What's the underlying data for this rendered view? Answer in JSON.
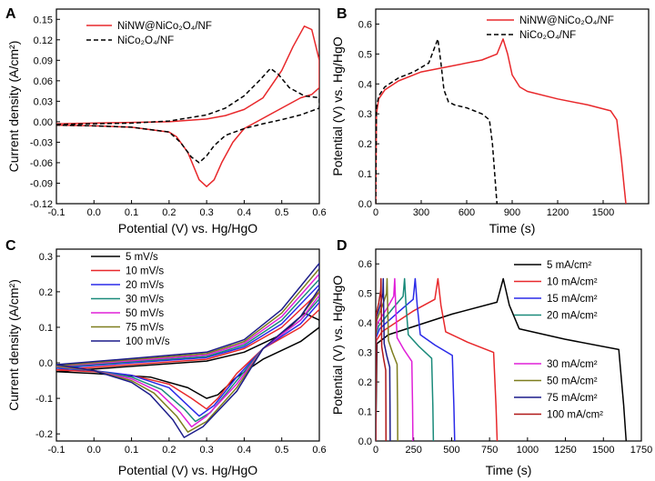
{
  "figure": {
    "background": "#ffffff",
    "axis_color": "#000000"
  },
  "chart_data": [
    {
      "panel": "A",
      "type": "line",
      "xlabel": "Potential (V) vs. Hg/HgO",
      "ylabel": "Current density (A/cm²)",
      "xlim": [
        -0.1,
        0.6
      ],
      "ylim": [
        -0.12,
        0.165
      ],
      "xticks": [
        "-0.1",
        "0.0",
        "0.1",
        "0.2",
        "0.3",
        "0.4",
        "0.5",
        "0.6"
      ],
      "yticks": [
        "-0.12",
        "-0.09",
        "-0.06",
        "-0.03",
        "0.00",
        "0.03",
        "0.06",
        "0.09",
        "0.12",
        "0.15"
      ],
      "legend_position": "top-left",
      "series": [
        {
          "name": "NiNW@NiCo₂O₄/NF",
          "color": "#e8282b",
          "dash": "solid",
          "x": [
            -0.1,
            0.0,
            0.1,
            0.2,
            0.3,
            0.35,
            0.4,
            0.45,
            0.5,
            0.53,
            0.56,
            0.58,
            0.6,
            0.6,
            0.58,
            0.55,
            0.5,
            0.45,
            0.4,
            0.37,
            0.34,
            0.32,
            0.3,
            0.28,
            0.25,
            0.22,
            0.2,
            0.1,
            0.0,
            -0.1
          ],
          "y": [
            -0.003,
            -0.002,
            -0.001,
            0.0,
            0.004,
            0.009,
            0.018,
            0.035,
            0.075,
            0.11,
            0.14,
            0.135,
            0.09,
            0.05,
            0.04,
            0.035,
            0.02,
            0.005,
            -0.01,
            -0.03,
            -0.06,
            -0.085,
            -0.095,
            -0.085,
            -0.045,
            -0.022,
            -0.015,
            -0.008,
            -0.006,
            -0.005
          ]
        },
        {
          "name": "NiCo₂O₄/NF",
          "color": "#000000",
          "dash": "dashed",
          "x": [
            -0.1,
            0.0,
            0.1,
            0.2,
            0.3,
            0.35,
            0.4,
            0.44,
            0.47,
            0.49,
            0.52,
            0.56,
            0.6,
            0.6,
            0.55,
            0.5,
            0.45,
            0.4,
            0.35,
            0.32,
            0.3,
            0.28,
            0.26,
            0.23,
            0.2,
            0.1,
            0.0,
            -0.1
          ],
          "y": [
            -0.004,
            -0.003,
            -0.002,
            0.001,
            0.01,
            0.02,
            0.038,
            0.06,
            0.078,
            0.07,
            0.05,
            0.038,
            0.035,
            0.02,
            0.01,
            0.003,
            -0.003,
            -0.01,
            -0.02,
            -0.035,
            -0.05,
            -0.06,
            -0.052,
            -0.03,
            -0.015,
            -0.008,
            -0.006,
            -0.005
          ]
        }
      ]
    },
    {
      "panel": "B",
      "type": "line",
      "xlabel": "Time (s)",
      "ylabel": "Potential (V) vs. Hg/HgO",
      "xlim": [
        0,
        1800
      ],
      "ylim": [
        0,
        0.65
      ],
      "xticks": [
        "0",
        "300",
        "600",
        "900",
        "1200",
        "1500"
      ],
      "yticks": [
        "0.0",
        "0.1",
        "0.2",
        "0.3",
        "0.4",
        "0.5",
        "0.6"
      ],
      "legend_position": "top-right",
      "series": [
        {
          "name": "NiNW@NiCo₂O₄/NF",
          "color": "#e8282b",
          "dash": "solid",
          "x": [
            0,
            5,
            20,
            60,
            150,
            300,
            500,
            700,
            800,
            840,
            870,
            900,
            950,
            1000,
            1200,
            1400,
            1550,
            1590,
            1620,
            1640,
            1650
          ],
          "y": [
            0.0,
            0.3,
            0.35,
            0.38,
            0.41,
            0.44,
            0.46,
            0.48,
            0.5,
            0.55,
            0.5,
            0.43,
            0.39,
            0.375,
            0.35,
            0.33,
            0.31,
            0.28,
            0.15,
            0.05,
            0.0
          ]
        },
        {
          "name": "NiCo₂O₄/NF",
          "color": "#000000",
          "dash": "dashed",
          "x": [
            0,
            5,
            20,
            60,
            150,
            250,
            350,
            410,
            430,
            450,
            480,
            520,
            600,
            700,
            750,
            770,
            785,
            795,
            800
          ],
          "y": [
            0.0,
            0.32,
            0.36,
            0.39,
            0.42,
            0.44,
            0.47,
            0.55,
            0.47,
            0.38,
            0.34,
            0.33,
            0.32,
            0.3,
            0.28,
            0.2,
            0.1,
            0.03,
            0.0
          ]
        }
      ]
    },
    {
      "panel": "C",
      "type": "line",
      "xlabel": "Potential (V) vs. Hg/HgO",
      "ylabel": "Current density (A/cm²)",
      "xlim": [
        -0.1,
        0.6
      ],
      "ylim": [
        -0.22,
        0.32
      ],
      "xticks": [
        "-0.1",
        "0.0",
        "0.1",
        "0.2",
        "0.3",
        "0.4",
        "0.5",
        "0.6"
      ],
      "yticks": [
        "-0.2",
        "-0.1",
        "0.0",
        "0.1",
        "0.2",
        "0.3"
      ],
      "legend_position": "top-left",
      "series": [
        {
          "name": "5 mV/s",
          "color": "#000000",
          "dash": "solid",
          "x": [
            -0.1,
            0.1,
            0.3,
            0.4,
            0.5,
            0.56,
            0.6,
            0.6,
            0.55,
            0.45,
            0.38,
            0.33,
            0.3,
            0.25,
            0.15,
            0.0,
            -0.1
          ],
          "y": [
            -0.025,
            -0.01,
            0.005,
            0.03,
            0.08,
            0.14,
            0.12,
            0.1,
            0.06,
            0.01,
            -0.04,
            -0.09,
            -0.1,
            -0.07,
            -0.04,
            -0.03,
            -0.025
          ]
        },
        {
          "name": "10 mV/s",
          "color": "#e8282b",
          "dash": "solid",
          "x": [
            -0.1,
            0.1,
            0.3,
            0.4,
            0.5,
            0.6,
            0.6,
            0.55,
            0.45,
            0.38,
            0.33,
            0.3,
            0.26,
            0.2,
            0.1,
            0.0,
            -0.1
          ],
          "y": [
            -0.02,
            -0.005,
            0.01,
            0.04,
            0.1,
            0.2,
            0.15,
            0.1,
            0.04,
            -0.03,
            -0.1,
            -0.13,
            -0.1,
            -0.06,
            -0.035,
            -0.025,
            -0.02
          ]
        },
        {
          "name": "20 mV/s",
          "color": "#2a2ae8",
          "dash": "solid",
          "x": [
            -0.1,
            0.1,
            0.3,
            0.4,
            0.5,
            0.6,
            0.6,
            0.55,
            0.45,
            0.38,
            0.32,
            0.28,
            0.25,
            0.2,
            0.1,
            0.0,
            -0.1
          ],
          "y": [
            -0.015,
            0.0,
            0.015,
            0.045,
            0.11,
            0.22,
            0.17,
            0.11,
            0.04,
            -0.04,
            -0.12,
            -0.15,
            -0.12,
            -0.07,
            -0.035,
            -0.022,
            -0.015
          ]
        },
        {
          "name": "30 mV/s",
          "color": "#1a8a7a",
          "dash": "solid",
          "x": [
            -0.1,
            0.1,
            0.3,
            0.4,
            0.5,
            0.6,
            0.6,
            0.55,
            0.45,
            0.38,
            0.31,
            0.27,
            0.24,
            0.18,
            0.1,
            0.0,
            -0.1
          ],
          "y": [
            -0.012,
            0.003,
            0.018,
            0.05,
            0.12,
            0.235,
            0.18,
            0.12,
            0.04,
            -0.05,
            -0.14,
            -0.165,
            -0.13,
            -0.075,
            -0.04,
            -0.022,
            -0.012
          ]
        },
        {
          "name": "50 mV/s",
          "color": "#e020d8",
          "dash": "solid",
          "x": [
            -0.1,
            0.1,
            0.3,
            0.4,
            0.5,
            0.6,
            0.6,
            0.55,
            0.45,
            0.38,
            0.3,
            0.26,
            0.23,
            0.17,
            0.1,
            0.0,
            -0.1
          ],
          "y": [
            -0.01,
            0.006,
            0.022,
            0.055,
            0.13,
            0.25,
            0.19,
            0.12,
            0.04,
            -0.06,
            -0.15,
            -0.18,
            -0.14,
            -0.08,
            -0.045,
            -0.022,
            -0.01
          ]
        },
        {
          "name": "75 mV/s",
          "color": "#7d7d1e",
          "dash": "solid",
          "x": [
            -0.1,
            0.1,
            0.3,
            0.4,
            0.5,
            0.6,
            0.6,
            0.55,
            0.45,
            0.38,
            0.3,
            0.25,
            0.22,
            0.16,
            0.1,
            0.0,
            -0.1
          ],
          "y": [
            -0.008,
            0.009,
            0.026,
            0.06,
            0.14,
            0.265,
            0.2,
            0.13,
            0.04,
            -0.07,
            -0.165,
            -0.195,
            -0.15,
            -0.085,
            -0.05,
            -0.022,
            -0.008
          ]
        },
        {
          "name": "100 mV/s",
          "color": "#1c1c8a",
          "dash": "solid",
          "x": [
            -0.1,
            0.1,
            0.3,
            0.4,
            0.5,
            0.6,
            0.6,
            0.55,
            0.45,
            0.38,
            0.29,
            0.24,
            0.21,
            0.15,
            0.1,
            0.0,
            -0.1
          ],
          "y": [
            -0.005,
            0.012,
            0.03,
            0.065,
            0.15,
            0.28,
            0.21,
            0.13,
            0.04,
            -0.08,
            -0.18,
            -0.21,
            -0.16,
            -0.09,
            -0.055,
            -0.022,
            -0.005
          ]
        }
      ]
    },
    {
      "panel": "D",
      "type": "line",
      "xlabel": "Time (s)",
      "ylabel": "Potential (V) vs. Hg/HgO",
      "xlim": [
        0,
        1750
      ],
      "ylim": [
        0,
        0.65
      ],
      "xticks": [
        "0",
        "250",
        "500",
        "750",
        "1000",
        "1250",
        "1500",
        "1750"
      ],
      "yticks": [
        "0.0",
        "0.1",
        "0.2",
        "0.3",
        "0.4",
        "0.5",
        "0.6"
      ],
      "legend_position": "right",
      "series": [
        {
          "name": "5 mA/cm²",
          "color": "#000000",
          "dash": "solid",
          "x_charge_end": 840,
          "x_end": 1650,
          "v_start": 0.33,
          "v_mid": 0.45,
          "v_drop": 0.38,
          "v_plateau_end": 0.31
        },
        {
          "name": "10 mA/cm²",
          "color": "#e8282b",
          "dash": "solid",
          "x_charge_end": 410,
          "x_end": 800,
          "v_start": 0.34,
          "v_mid": 0.46,
          "v_drop": 0.37,
          "v_plateau_end": 0.3
        },
        {
          "name": "15 mA/cm²",
          "color": "#2a2ae8",
          "dash": "solid",
          "x_charge_end": 260,
          "x_end": 520,
          "v_start": 0.35,
          "v_mid": 0.46,
          "v_drop": 0.36,
          "v_plateau_end": 0.29
        },
        {
          "name": "20 mA/cm²",
          "color": "#1a8a7a",
          "dash": "solid",
          "x_charge_end": 190,
          "x_end": 380,
          "v_start": 0.36,
          "v_mid": 0.47,
          "v_drop": 0.36,
          "v_plateau_end": 0.28
        },
        {
          "name": "30 mA/cm²",
          "color": "#e020d8",
          "dash": "solid",
          "x_charge_end": 125,
          "x_end": 245,
          "v_start": 0.37,
          "v_mid": 0.47,
          "v_drop": 0.35,
          "v_plateau_end": 0.27
        },
        {
          "name": "50 mA/cm²",
          "color": "#7d7d1e",
          "dash": "solid",
          "x_charge_end": 75,
          "x_end": 145,
          "v_start": 0.38,
          "v_mid": 0.48,
          "v_drop": 0.34,
          "v_plateau_end": 0.26
        },
        {
          "name": "75 mA/cm²",
          "color": "#1c1c8a",
          "dash": "solid",
          "x_charge_end": 50,
          "x_end": 95,
          "v_start": 0.39,
          "v_mid": 0.48,
          "v_drop": 0.33,
          "v_plateau_end": 0.25
        },
        {
          "name": "100 mA/cm²",
          "color": "#b01818",
          "dash": "solid",
          "x_charge_end": 35,
          "x_end": 68,
          "v_start": 0.4,
          "v_mid": 0.49,
          "v_drop": 0.32,
          "v_plateau_end": 0.24
        }
      ]
    }
  ]
}
